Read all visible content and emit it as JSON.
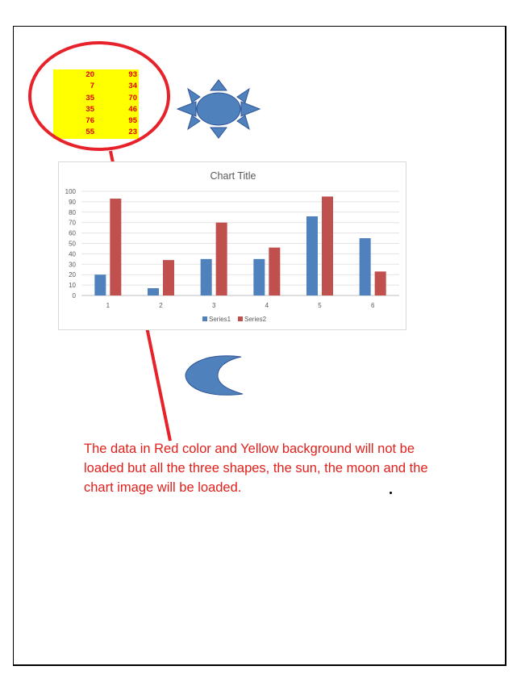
{
  "table": {
    "rows": [
      [
        "20",
        "93"
      ],
      [
        "7",
        "34"
      ],
      [
        "35",
        "70"
      ],
      [
        "35",
        "46"
      ],
      [
        "76",
        "95"
      ],
      [
        "55",
        "23"
      ]
    ],
    "background_color": "#ffff00",
    "text_color": "#e00000"
  },
  "chart_data": {
    "type": "bar",
    "title": "Chart Title",
    "categories": [
      "1",
      "2",
      "3",
      "4",
      "5",
      "6"
    ],
    "series": [
      {
        "name": "Series1",
        "values": [
          20,
          7,
          35,
          35,
          76,
          55
        ],
        "color": "#4f81bd"
      },
      {
        "name": "Series2",
        "values": [
          93,
          34,
          70,
          46,
          95,
          23
        ],
        "color": "#c0504d"
      }
    ],
    "yticks": [
      "0",
      "10",
      "20",
      "30",
      "40",
      "50",
      "60",
      "70",
      "80",
      "90",
      "100"
    ],
    "ylim": [
      0,
      100
    ],
    "grid": true,
    "legend_position": "bottom"
  },
  "shapes": {
    "sun_icon": "sun-icon",
    "moon_icon": "moon-icon",
    "shape_color": "#4f81bd",
    "annotation_color": "#e8222a"
  },
  "caption": "The data in Red color and Yellow background will not be loaded but all the three shapes, the sun, the moon and the chart image will be loaded."
}
